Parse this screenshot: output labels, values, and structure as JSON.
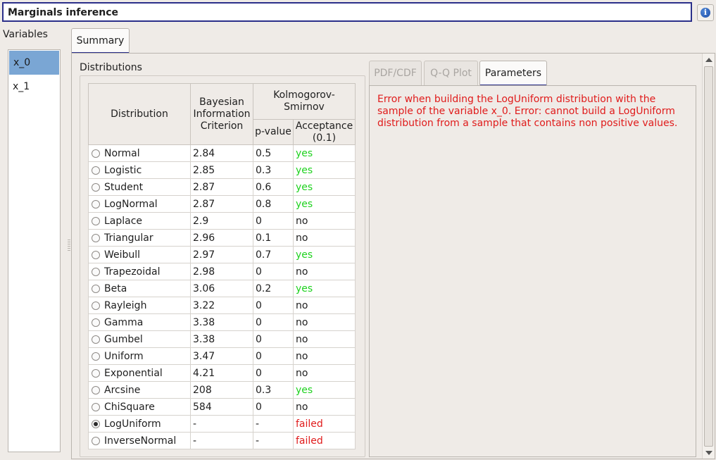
{
  "title": "Marginals inference",
  "variables": {
    "label": "Variables",
    "items": [
      "x_0",
      "x_1"
    ],
    "selected": "x_0"
  },
  "tabs": {
    "summary": "Summary"
  },
  "distributions_label": "Distributions",
  "table": {
    "headers": {
      "distribution": "Distribution",
      "bic": "Bayesian Information Criterion",
      "ks": "Kolmogorov-Smirnov",
      "pvalue": "p-value",
      "acceptance": "Acceptance (0.1)"
    },
    "rows": [
      {
        "name": "Normal",
        "bic": "2.84",
        "pvalue": "0.5",
        "acceptance": "yes",
        "selected": false
      },
      {
        "name": "Logistic",
        "bic": "2.85",
        "pvalue": "0.3",
        "acceptance": "yes",
        "selected": false
      },
      {
        "name": "Student",
        "bic": "2.87",
        "pvalue": "0.6",
        "acceptance": "yes",
        "selected": false
      },
      {
        "name": "LogNormal",
        "bic": "2.87",
        "pvalue": "0.8",
        "acceptance": "yes",
        "selected": false
      },
      {
        "name": "Laplace",
        "bic": "2.9",
        "pvalue": "0",
        "acceptance": "no",
        "selected": false
      },
      {
        "name": "Triangular",
        "bic": "2.96",
        "pvalue": "0.1",
        "acceptance": "no",
        "selected": false
      },
      {
        "name": "Weibull",
        "bic": "2.97",
        "pvalue": "0.7",
        "acceptance": "yes",
        "selected": false
      },
      {
        "name": "Trapezoidal",
        "bic": "2.98",
        "pvalue": "0",
        "acceptance": "no",
        "selected": false
      },
      {
        "name": "Beta",
        "bic": "3.06",
        "pvalue": "0.2",
        "acceptance": "yes",
        "selected": false
      },
      {
        "name": "Rayleigh",
        "bic": "3.22",
        "pvalue": "0",
        "acceptance": "no",
        "selected": false
      },
      {
        "name": "Gamma",
        "bic": "3.38",
        "pvalue": "0",
        "acceptance": "no",
        "selected": false
      },
      {
        "name": "Gumbel",
        "bic": "3.38",
        "pvalue": "0",
        "acceptance": "no",
        "selected": false
      },
      {
        "name": "Uniform",
        "bic": "3.47",
        "pvalue": "0",
        "acceptance": "no",
        "selected": false
      },
      {
        "name": "Exponential",
        "bic": "4.21",
        "pvalue": "0",
        "acceptance": "no",
        "selected": false
      },
      {
        "name": "Arcsine",
        "bic": "208",
        "pvalue": "0.3",
        "acceptance": "yes",
        "selected": false
      },
      {
        "name": "ChiSquare",
        "bic": "584",
        "pvalue": "0",
        "acceptance": "no",
        "selected": false
      },
      {
        "name": "LogUniform",
        "bic": "-",
        "pvalue": "-",
        "acceptance": "failed",
        "selected": true
      },
      {
        "name": "InverseNormal",
        "bic": "-",
        "pvalue": "-",
        "acceptance": "failed",
        "selected": false
      }
    ]
  },
  "right_tabs": [
    {
      "label": "PDF/CDF",
      "enabled": false,
      "active": false
    },
    {
      "label": "Q-Q Plot",
      "enabled": false,
      "active": false
    },
    {
      "label": "Parameters",
      "enabled": true,
      "active": true
    }
  ],
  "error_message": "Error when building the LogUniform distribution with the sample of the variable x_0. Error: cannot build a LogUniform distribution from a sample that contains non positive values.",
  "colors": {
    "accent": "#2b2f8a",
    "selection": "#7aa6d4",
    "yes": "#1fd21f",
    "failed": "#e01b1b",
    "info_icon": "#1c4ea8"
  },
  "icons": {
    "info": "info-icon",
    "radio": "radio-button",
    "scroll_up": "arrow-up-icon",
    "scroll_down": "arrow-down-icon"
  }
}
